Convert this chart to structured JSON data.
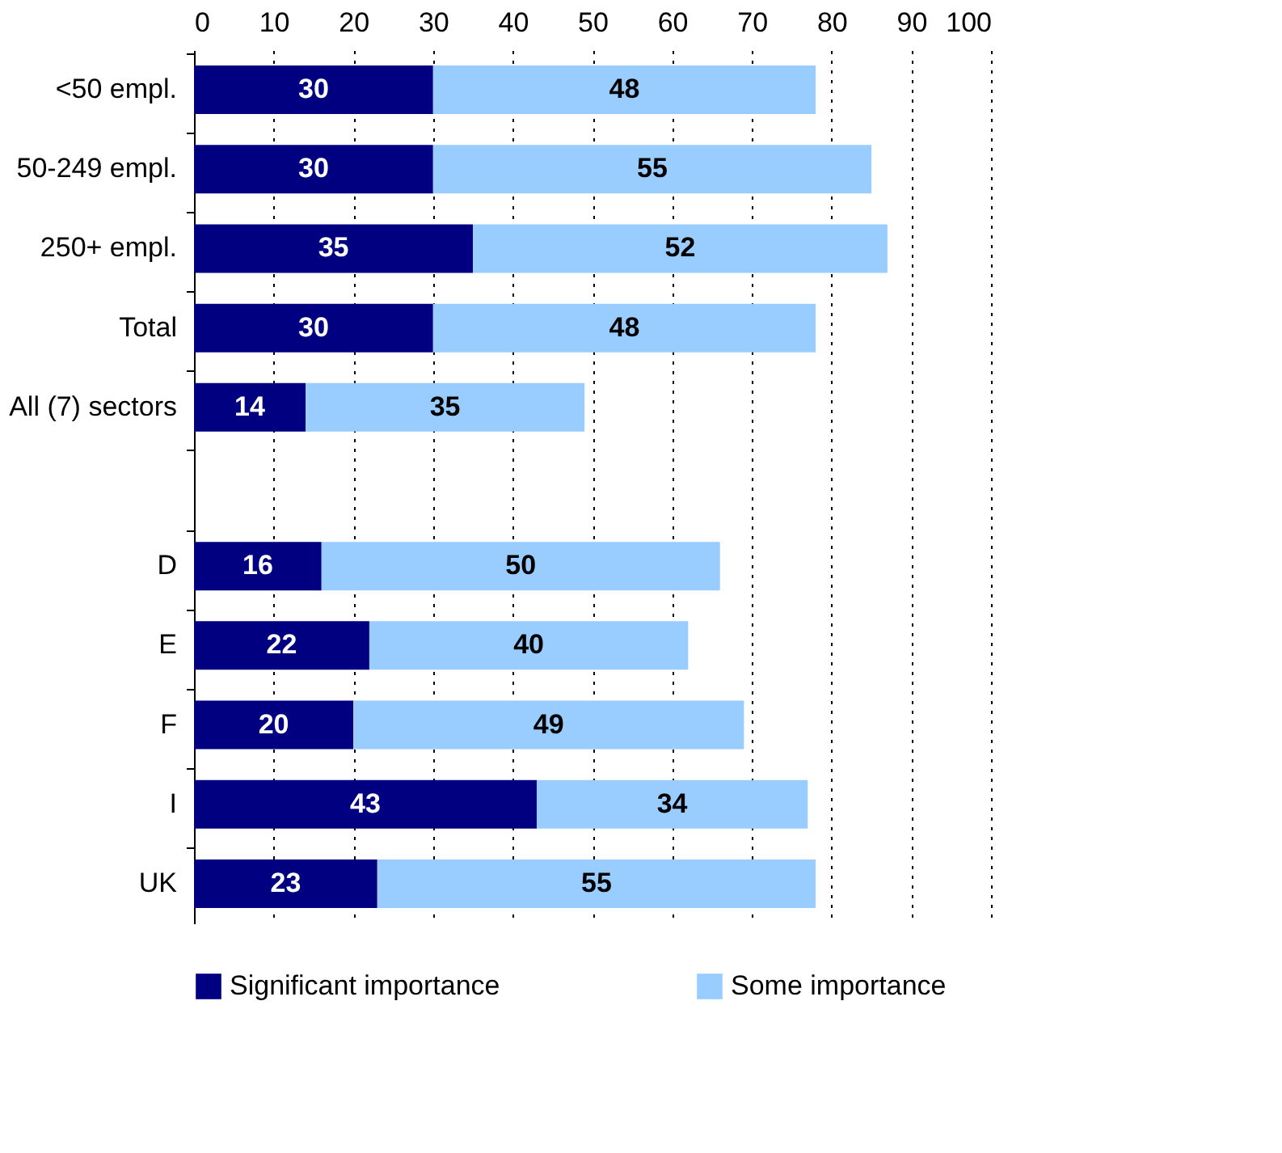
{
  "chart_data": {
    "type": "bar",
    "orientation": "horizontal",
    "stacked": true,
    "data_labels": true,
    "grid": "x",
    "legend": "bottom",
    "categories": [
      "<50 empl.",
      "50-249 empl.",
      "250+ empl.",
      "Total",
      "All (7) sectors",
      null,
      "D",
      "E",
      "F",
      "I",
      "UK"
    ],
    "xlim": [
      0,
      100
    ],
    "xticks": [
      0,
      10,
      20,
      30,
      40,
      50,
      60,
      70,
      80,
      90,
      100
    ],
    "series": [
      {
        "name": "Significant importance",
        "color": "#000080",
        "values": [
          30,
          30,
          35,
          30,
          14,
          null,
          16,
          22,
          20,
          43,
          23
        ]
      },
      {
        "name": "Some importance",
        "color": "#99ccff",
        "values": [
          48,
          55,
          52,
          48,
          35,
          null,
          50,
          40,
          49,
          34,
          55
        ]
      }
    ]
  }
}
